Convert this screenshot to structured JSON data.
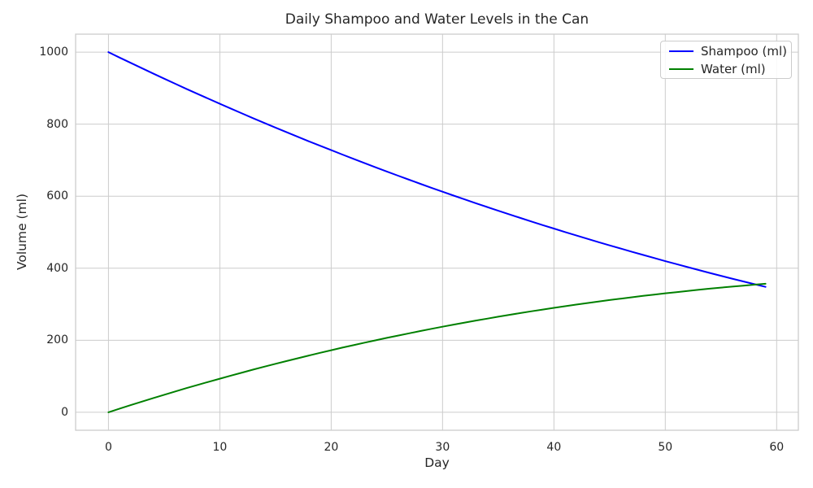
{
  "figure": {
    "background": "#ffffff",
    "text_color": "#262626"
  },
  "chart_data": {
    "type": "line",
    "title": "Daily Shampoo and Water Levels in the Can",
    "xlabel": "Day",
    "ylabel": "Volume (ml)",
    "xlim": [
      -2.95,
      61.95
    ],
    "ylim": [
      -50,
      1050
    ],
    "xticks": [
      0,
      10,
      20,
      30,
      40,
      50,
      60
    ],
    "yticks": [
      0,
      200,
      400,
      600,
      800,
      1000
    ],
    "grid": true,
    "grid_color": "#cccccc",
    "axes_edge_color": "#cccccc",
    "legend": {
      "position": "upper right",
      "entries": [
        "Shampoo (ml)",
        "Water (ml)"
      ]
    },
    "x": [
      0,
      1,
      2,
      3,
      4,
      5,
      6,
      7,
      8,
      9,
      10,
      11,
      12,
      13,
      14,
      15,
      16,
      17,
      18,
      19,
      20,
      21,
      22,
      23,
      24,
      25,
      26,
      27,
      28,
      29,
      30,
      31,
      32,
      33,
      34,
      35,
      36,
      37,
      38,
      39,
      40,
      41,
      42,
      43,
      44,
      45,
      46,
      47,
      48,
      49,
      50,
      51,
      52,
      53,
      54,
      55,
      56,
      57,
      58,
      59
    ],
    "series": [
      {
        "name": "Shampoo (ml)",
        "color": "#0000ff",
        "values": [
          1000,
          985,
          970.2,
          955.5,
          940.9,
          926.5,
          912.2,
          898.1,
          884.2,
          870.4,
          856.7,
          843.2,
          829.8,
          816.5,
          803.4,
          790.5,
          777.7,
          765,
          752.4,
          740,
          727.8,
          715.6,
          703.7,
          691.8,
          680.1,
          668.5,
          657,
          645.7,
          634.5,
          623.4,
          612.5,
          601.7,
          591,
          580.4,
          570,
          559.7,
          549.5,
          539.5,
          529.6,
          519.7,
          510.1,
          500.5,
          491.1,
          481.7,
          472.5,
          463.4,
          454.5,
          445.6,
          436.9,
          428.3,
          419.7,
          411.4,
          403.1,
          394.9,
          386.8,
          378.9,
          371.1,
          363.3,
          355.7,
          348.2
        ]
      },
      {
        "name": "Water (ml)",
        "color": "#008000",
        "values": [
          0,
          10,
          19.8,
          29.5,
          39.1,
          48.5,
          57.8,
          66.9,
          75.8,
          84.6,
          93.3,
          101.8,
          110.2,
          118.5,
          126.6,
          134.5,
          142.3,
          150,
          157.6,
          165,
          172.2,
          179.4,
          186.3,
          193.2,
          199.9,
          206.5,
          213,
          219.3,
          225.5,
          231.6,
          237.5,
          243.3,
          249,
          254.6,
          260,
          265.3,
          270.5,
          275.5,
          280.4,
          285.3,
          289.9,
          294.5,
          298.9,
          303.3,
          307.5,
          311.6,
          315.5,
          319.4,
          323.1,
          326.7,
          330.3,
          333.6,
          336.9,
          340.1,
          343.2,
          346.1,
          348.9,
          351.7,
          354.3,
          356.8
        ]
      }
    ]
  }
}
